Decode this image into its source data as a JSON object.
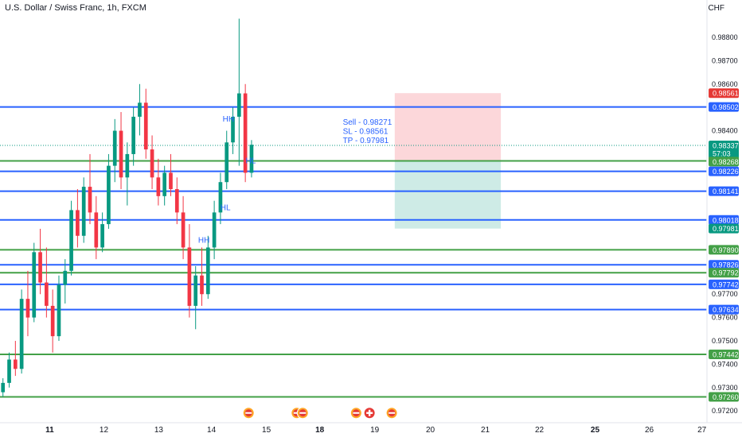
{
  "header": {
    "title": "U.S. Dollar / Swiss Franc, 1h, FXCM",
    "currency": "CHF"
  },
  "chart_data": {
    "type": "candlestick",
    "symbol": "U.S. Dollar / Swiss Franc",
    "interval": "1h",
    "source": "FXCM",
    "ylim": [
      0.9715,
      0.9896
    ],
    "y_ticks": [
      "0.98800",
      "0.98700",
      "0.98600",
      "0.98400",
      "0.97700",
      "0.97600",
      "0.97500",
      "0.97400",
      "0.97300",
      "0.97200"
    ],
    "x_ticks": [
      {
        "label": "11",
        "bold": true
      },
      {
        "label": "12",
        "bold": false
      },
      {
        "label": "13",
        "bold": false
      },
      {
        "label": "14",
        "bold": false
      },
      {
        "label": "15",
        "bold": false
      },
      {
        "label": "18",
        "bold": true
      },
      {
        "label": "19",
        "bold": false
      },
      {
        "label": "20",
        "bold": false
      },
      {
        "label": "21",
        "bold": false
      },
      {
        "label": "22",
        "bold": false
      },
      {
        "label": "25",
        "bold": true
      },
      {
        "label": "26",
        "bold": false
      },
      {
        "label": "27",
        "bold": false
      }
    ],
    "levels": [
      {
        "value": 0.98502,
        "label": "0.98502",
        "color": "#2962ff"
      },
      {
        "value": 0.98271,
        "label": "0.98271",
        "color": "#43a047"
      },
      {
        "value": 0.98226,
        "label": "0.98226",
        "color": "#2962ff"
      },
      {
        "value": 0.98141,
        "label": "0.98141",
        "color": "#2962ff"
      },
      {
        "value": 0.98018,
        "label": "0.98018",
        "color": "#2962ff"
      },
      {
        "value": 0.9789,
        "label": "0.97890",
        "color": "#43a047"
      },
      {
        "value": 0.97826,
        "label": "0.97826",
        "color": "#2962ff"
      },
      {
        "value": 0.97792,
        "label": "0.97792",
        "color": "#43a047"
      },
      {
        "value": 0.97742,
        "label": "0.97742",
        "color": "#2962ff"
      },
      {
        "value": 0.97634,
        "label": "0.97634",
        "color": "#2962ff"
      },
      {
        "value": 0.97442,
        "label": "0.97442",
        "color": "#43a047"
      },
      {
        "value": 0.9726,
        "label": "0.97260",
        "color": "#43a047"
      }
    ],
    "price_tags": [
      {
        "value": 0.98561,
        "label": "0.98561",
        "color": "#e53935"
      },
      {
        "value": 0.98337,
        "label": "0.98337",
        "sub": "57:03",
        "color": "#089981"
      },
      {
        "value": 0.98268,
        "label": "0.98268",
        "color": "#43a047"
      },
      {
        "value": 0.97981,
        "label": "0.97981",
        "color": "#089981"
      }
    ],
    "current_price": 0.98337,
    "trade": {
      "entry": 0.98271,
      "stop_loss": 0.98561,
      "take_profit": 0.97981,
      "text_lines": [
        "Sell - 0.98271",
        "SL - 0.98561",
        "TP - 0.97981"
      ]
    },
    "annotations": [
      {
        "text": "HH",
        "value": 0.9844
      },
      {
        "text": "HL",
        "value": 0.9826
      },
      {
        "text": "HL",
        "value": 0.9806
      },
      {
        "text": "HH",
        "value": 0.9792
      }
    ],
    "event_icons": [
      "us-flag-event-icon",
      "us-flag-event-icon",
      "us-flag-event-icon",
      "us-flag-event-icon",
      "ch-flag-event-icon",
      "us-flag-event-icon"
    ],
    "candles": [
      [
        0.9728,
        0.9734,
        0.9726,
        0.9732
      ],
      [
        0.9732,
        0.9745,
        0.973,
        0.9742
      ],
      [
        0.9742,
        0.975,
        0.9735,
        0.9738
      ],
      [
        0.9738,
        0.9772,
        0.9736,
        0.9768
      ],
      [
        0.9768,
        0.978,
        0.9752,
        0.976
      ],
      [
        0.976,
        0.9792,
        0.9758,
        0.9788
      ],
      [
        0.9788,
        0.9798,
        0.977,
        0.9775
      ],
      [
        0.9775,
        0.979,
        0.976,
        0.9765
      ],
      [
        0.9765,
        0.9772,
        0.9745,
        0.9752
      ],
      [
        0.9752,
        0.9778,
        0.975,
        0.9774
      ],
      [
        0.9774,
        0.9785,
        0.9766,
        0.978
      ],
      [
        0.978,
        0.981,
        0.9778,
        0.9806
      ],
      [
        0.9806,
        0.9815,
        0.979,
        0.9795
      ],
      [
        0.9795,
        0.982,
        0.9792,
        0.9816
      ],
      [
        0.9816,
        0.983,
        0.98,
        0.9805
      ],
      [
        0.9805,
        0.9812,
        0.9785,
        0.979
      ],
      [
        0.979,
        0.9805,
        0.9788,
        0.98
      ],
      [
        0.98,
        0.983,
        0.9798,
        0.9825
      ],
      [
        0.9825,
        0.9845,
        0.9818,
        0.984
      ],
      [
        0.984,
        0.9848,
        0.9815,
        0.982
      ],
      [
        0.982,
        0.9835,
        0.9808,
        0.983
      ],
      [
        0.983,
        0.985,
        0.9825,
        0.9846
      ],
      [
        0.9846,
        0.986,
        0.9838,
        0.9852
      ],
      [
        0.9852,
        0.9858,
        0.9828,
        0.9832
      ],
      [
        0.9832,
        0.9838,
        0.9815,
        0.982
      ],
      [
        0.982,
        0.9828,
        0.9808,
        0.9812
      ],
      [
        0.9812,
        0.9825,
        0.9808,
        0.9822
      ],
      [
        0.9822,
        0.983,
        0.9812,
        0.9815
      ],
      [
        0.9815,
        0.982,
        0.98,
        0.9805
      ],
      [
        0.9805,
        0.9812,
        0.9785,
        0.979
      ],
      [
        0.979,
        0.98,
        0.976,
        0.9765
      ],
      [
        0.9765,
        0.9782,
        0.9755,
        0.9778
      ],
      [
        0.9778,
        0.979,
        0.9765,
        0.977
      ],
      [
        0.977,
        0.9795,
        0.9768,
        0.979
      ],
      [
        0.979,
        0.981,
        0.9785,
        0.9805
      ],
      [
        0.9805,
        0.9822,
        0.98,
        0.9818
      ],
      [
        0.9818,
        0.984,
        0.9815,
        0.9835
      ],
      [
        0.9835,
        0.985,
        0.983,
        0.9846
      ],
      [
        0.9846,
        0.9888,
        0.9825,
        0.9856
      ],
      [
        0.9856,
        0.986,
        0.9818,
        0.9822
      ],
      [
        0.9822,
        0.9836,
        0.982,
        0.9834
      ]
    ],
    "xlabel": "",
    "ylabel": ""
  }
}
